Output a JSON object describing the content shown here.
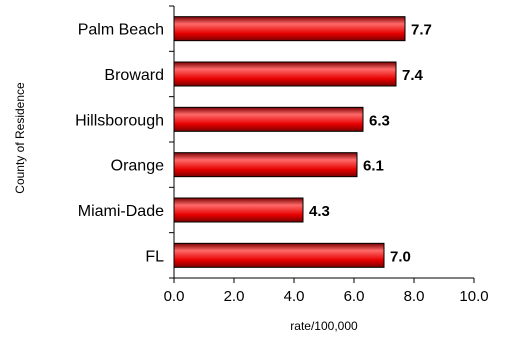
{
  "chart_data": {
    "type": "bar",
    "orientation": "horizontal",
    "categories": [
      "Palm Beach",
      "Broward",
      "Hillsborough",
      "Orange",
      "Miami-Dade",
      "FL"
    ],
    "values": [
      7.7,
      7.4,
      6.3,
      6.1,
      4.3,
      7.0
    ],
    "value_labels": [
      "7.7",
      "7.4",
      "6.3",
      "6.1",
      "4.3",
      "7.0"
    ],
    "xlabel": "rate/100,000",
    "ylabel": "County of Residence",
    "xlim": [
      0,
      10
    ],
    "xticks": [
      "0.0",
      "2.0",
      "4.0",
      "6.0",
      "8.0",
      "10.0"
    ],
    "grid": false,
    "legend": "none",
    "bar_color": "#e60000",
    "bar_highlight": "#ff6a6a",
    "bar_shadow": "#7a0000"
  }
}
